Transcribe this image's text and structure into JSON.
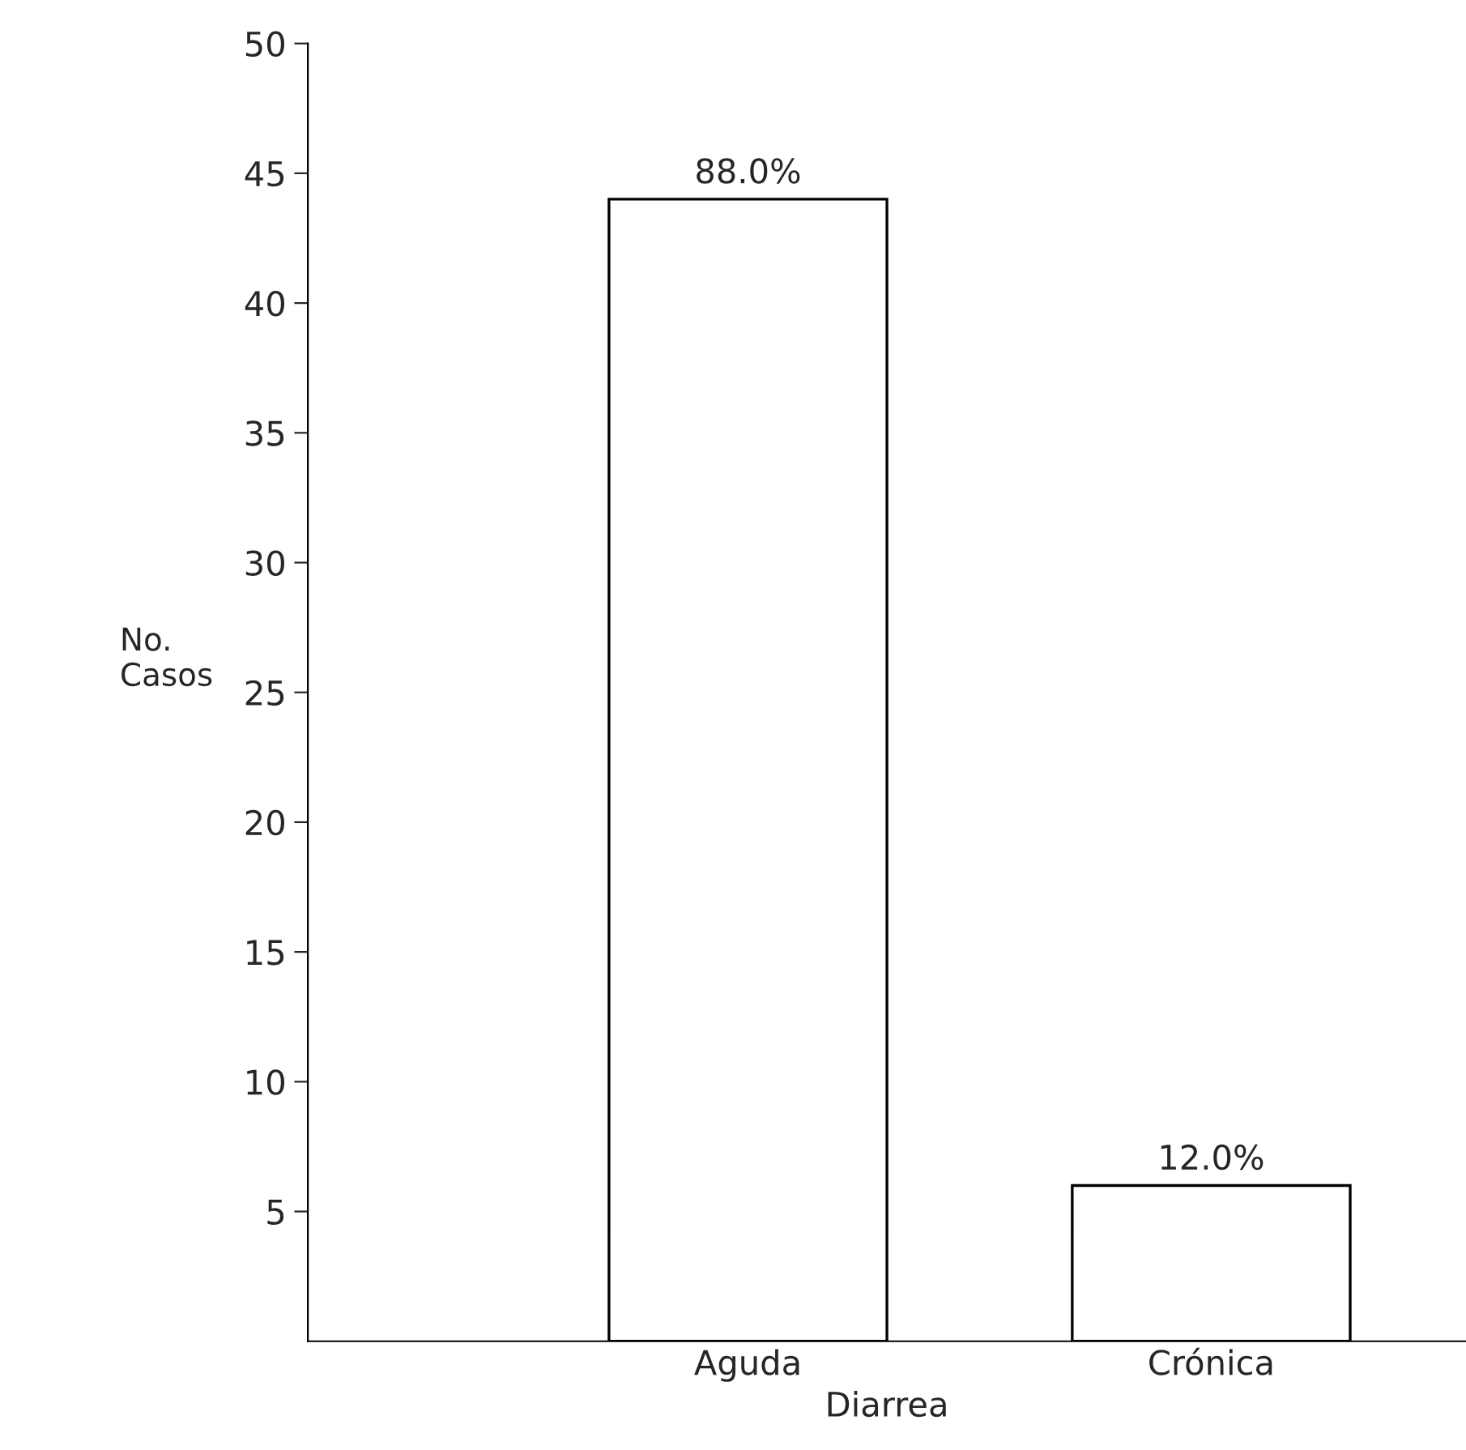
{
  "chart_data": {
    "type": "bar",
    "xlabel": "Diarrea",
    "ylabel": "No.\nCasos",
    "categories": [
      "Aguda",
      "Crónica"
    ],
    "series": [
      {
        "color": "#ffffff",
        "values": [
          44,
          6
        ]
      }
    ],
    "value_labels": [
      "88.0%",
      "12.0%"
    ],
    "ylim": [
      0,
      50
    ],
    "yticks": [
      5,
      10,
      15,
      20,
      25,
      30,
      35,
      40,
      45,
      50
    ],
    "grid": false,
    "legend": false
  }
}
